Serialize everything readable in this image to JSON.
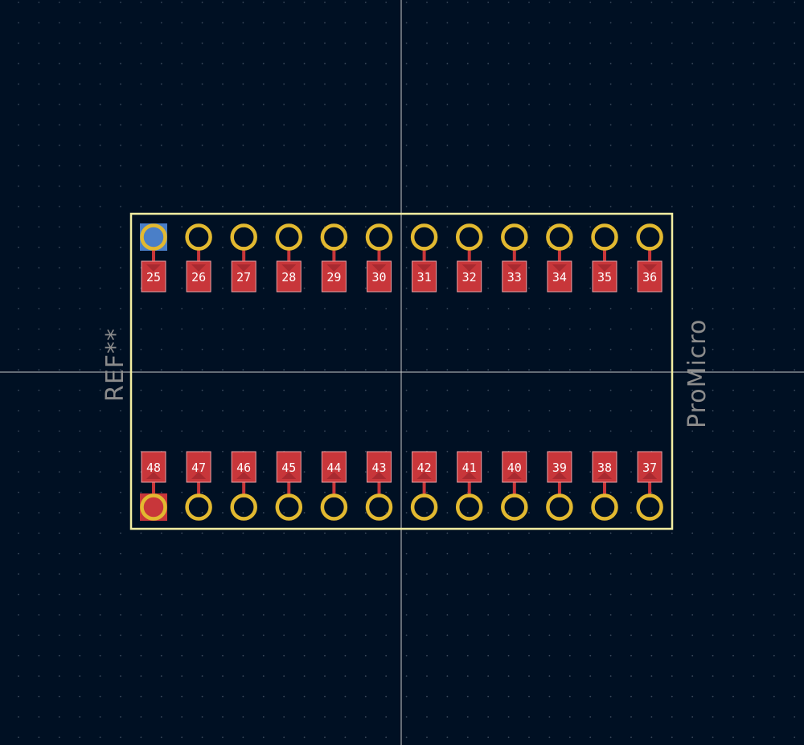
{
  "footprint": {
    "reference": "REF**",
    "value": "ProMicro"
  },
  "colors": {
    "background": "#001023",
    "grid_dot": "#3b4a5c",
    "crosshair": "#c8c8c8",
    "outline": "#f2eda1",
    "through_hole_ring": "#e2b930",
    "smd_pad": "#c8363a",
    "smd_pad_border": "#e8a0a4",
    "trace": "#c8363a",
    "pin1_top_marker": "#4a7fc8",
    "pin1_bottom_marker": "#c8363a",
    "silk_text": "#8c8c8c"
  },
  "top_row_pins": [
    "25",
    "26",
    "27",
    "28",
    "29",
    "30",
    "31",
    "32",
    "33",
    "34",
    "35",
    "36"
  ],
  "bottom_row_pins": [
    "48",
    "47",
    "46",
    "45",
    "44",
    "43",
    "42",
    "41",
    "40",
    "39",
    "38",
    "37"
  ]
}
